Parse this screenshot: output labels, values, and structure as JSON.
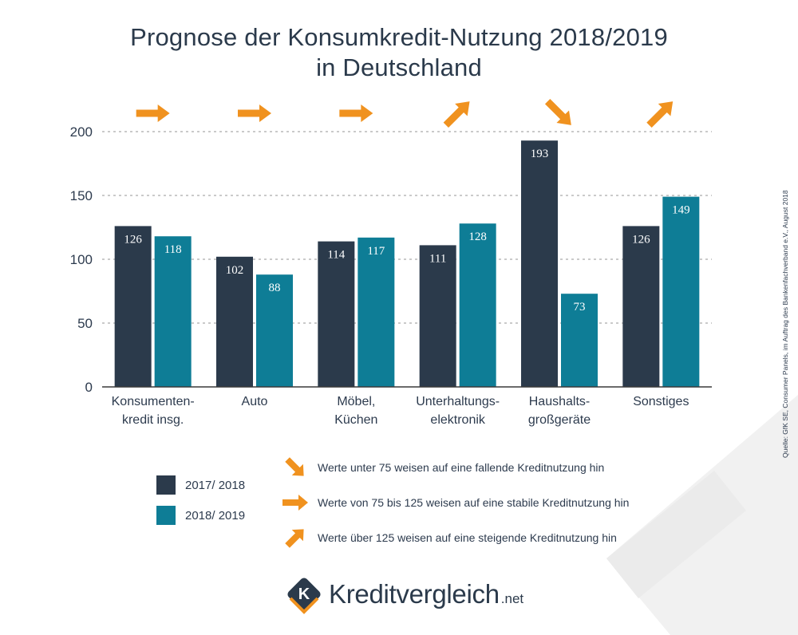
{
  "title_lines": [
    "Prognose der Konsumkredit-Nutzung 2018/2019",
    "in Deutschland"
  ],
  "source": "Quelle: GfK SE, Consumer Panels, im Auftrag des Bankenfachverband e.V., August 2018",
  "legend": {
    "items": [
      {
        "label": "2017/ 2018",
        "color": "#2b3a4b"
      },
      {
        "label": "2018/ 2019",
        "color": "#0e7d96"
      }
    ]
  },
  "notes": [
    {
      "icon": "arrow-down-right-icon",
      "text": "Werte unter 75 weisen auf eine fallende Kreditnutzung hin"
    },
    {
      "icon": "arrow-right-icon",
      "text": "Werte von 75 bis 125 weisen auf eine stabile Kreditnutzung hin"
    },
    {
      "icon": "arrow-up-right-icon",
      "text": "Werte über 125 weisen auf eine steigende Kreditnutzung hin"
    }
  ],
  "logo": {
    "name": "Kreditvergleich",
    "tld": ".net",
    "letter": "K"
  },
  "colors": {
    "series_2017": "#2b3a4b",
    "series_2018": "#0e7d96",
    "arrow": "#f0921f",
    "grid": "#b8b8b8",
    "text": "#2d3b4e"
  },
  "chart_data": {
    "type": "bar",
    "categories": [
      [
        "Konsumenten-",
        "kredit insg."
      ],
      [
        "Auto"
      ],
      [
        "Möbel,",
        "Küchen"
      ],
      [
        "Unterhaltungs-",
        "elektronik"
      ],
      [
        "Haushalts-",
        "großgeräte"
      ],
      [
        "Sonstiges"
      ]
    ],
    "series": [
      {
        "name": "2017/ 2018",
        "values": [
          126,
          102,
          114,
          111,
          193,
          126
        ]
      },
      {
        "name": "2018/ 2019",
        "values": [
          118,
          88,
          117,
          128,
          73,
          149
        ]
      }
    ],
    "trend_arrows": [
      "right",
      "right",
      "right",
      "up-right",
      "down-right",
      "up-right"
    ],
    "ylim": [
      0,
      200
    ],
    "yticks": [
      0,
      50,
      100,
      150,
      200
    ],
    "grid": true,
    "legend_position": "bottom-left"
  }
}
